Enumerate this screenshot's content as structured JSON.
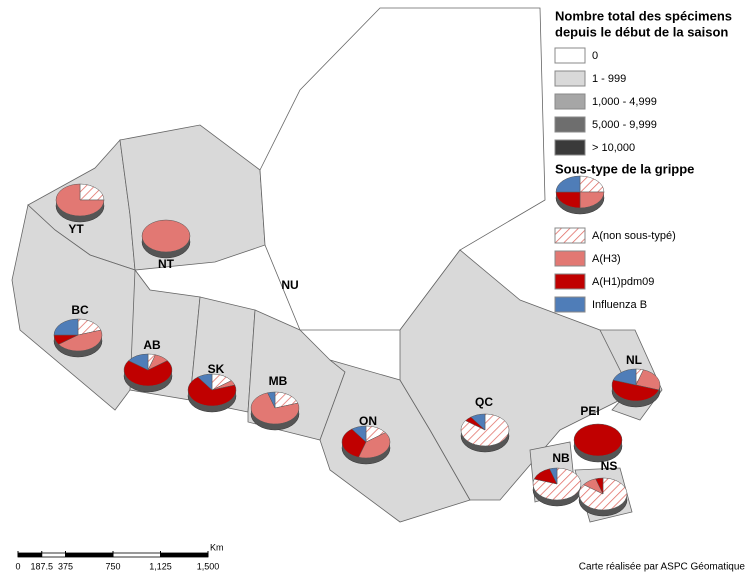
{
  "legend": {
    "count_title_lines": [
      "Nombre total des spécimens",
      "depuis le début de la saison"
    ],
    "count_classes": [
      {
        "label": "0",
        "color": "#ffffff"
      },
      {
        "label": "1 - 999",
        "color": "#d9d9d9"
      },
      {
        "label": "1,000 - 4,999",
        "color": "#a6a6a6"
      },
      {
        "label": "5,000 - 9,999",
        "color": "#6e6e6e"
      },
      {
        "label": "> 10,000",
        "color": "#3a3a3a"
      }
    ],
    "subtype_title": "Sous-type de la grippe",
    "subtypes": [
      {
        "label": "A(non sous-typé)",
        "color": "#e06a62",
        "pattern": "hatch"
      },
      {
        "label": "A(H3)",
        "color": "#e27873"
      },
      {
        "label": "A(H1)pdm09",
        "color": "#c00000"
      },
      {
        "label": "Influenza B",
        "color": "#4f7db8"
      }
    ]
  },
  "provinces": [
    {
      "label": "YT",
      "count_class": 1,
      "shares": [
        25,
        75,
        0,
        0
      ]
    },
    {
      "label": "NT",
      "count_class": 1,
      "shares": [
        0,
        100,
        0,
        0
      ]
    },
    {
      "label": "NU",
      "count_class": 0
    },
    {
      "label": "BC",
      "count_class": 1,
      "shares": [
        20,
        45,
        10,
        25
      ]
    },
    {
      "label": "AB",
      "count_class": 1,
      "shares": [
        5,
        10,
        70,
        15
      ]
    },
    {
      "label": "SK",
      "count_class": 1,
      "shares": [
        15,
        5,
        70,
        10
      ]
    },
    {
      "label": "MB",
      "count_class": 1,
      "shares": [
        20,
        75,
        0,
        5
      ]
    },
    {
      "label": "ON",
      "count_class": 1,
      "shares": [
        15,
        40,
        35,
        10
      ]
    },
    {
      "label": "QC",
      "count_class": 1,
      "shares": [
        85,
        0,
        5,
        10
      ]
    },
    {
      "label": "NL",
      "count_class": 1,
      "shares": [
        5,
        25,
        50,
        20
      ]
    },
    {
      "label": "PEI",
      "count_class": 1,
      "shares": [
        0,
        0,
        100,
        0
      ]
    },
    {
      "label": "NB",
      "count_class": 1,
      "shares": [
        80,
        0,
        15,
        5
      ]
    },
    {
      "label": "NS",
      "count_class": 1,
      "shares": [
        85,
        10,
        5,
        0
      ]
    }
  ],
  "scale": {
    "unit": "Km",
    "ticks": [
      0,
      187.5,
      375,
      750,
      {
        "value": 1125,
        "label": "1,125"
      },
      {
        "value": 1500,
        "label": "1,500"
      }
    ]
  },
  "credit": "Carte réalisée par ASPC Géomatique"
}
